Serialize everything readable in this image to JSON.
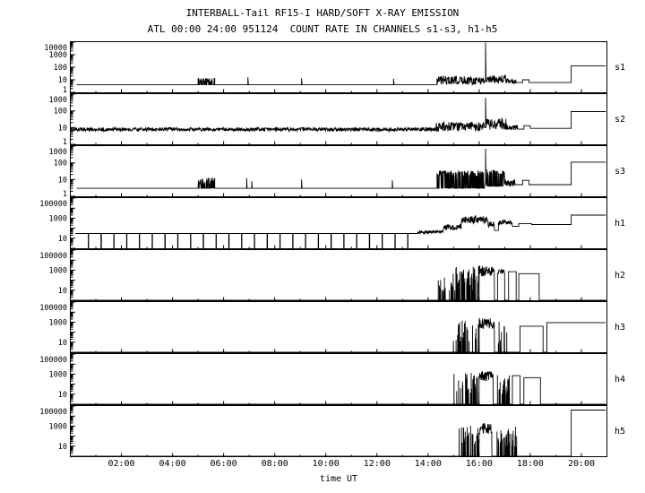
{
  "title": "INTERBALL-Tail RF15-I HARD/SOFT X-RAY EMISSION",
  "subtitle": "ATL 00:00 24:00 951124  COUNT RATE IN CHANNELS s1-s3, h1-h5",
  "xlabel": "time UT",
  "chart_data": {
    "type": "line",
    "title": "INTERBALL-Tail RF15-I HARD/SOFT X-RAY EMISSION",
    "subtitle": "ATL 00:00 24:00 951124  COUNT RATE IN CHANNELS s1-s3, h1-h5",
    "xlabel": "time UT",
    "x_range_hours": [
      0,
      21
    ],
    "grid": false,
    "legend": "none",
    "x_ticks": [
      {
        "hour": 2,
        "label": "02:00"
      },
      {
        "hour": 4,
        "label": "04:00"
      },
      {
        "hour": 6,
        "label": "06:00"
      },
      {
        "hour": 8,
        "label": "08:00"
      },
      {
        "hour": 10,
        "label": "10:00"
      },
      {
        "hour": 12,
        "label": "12:00"
      },
      {
        "hour": 14,
        "label": "14:00"
      },
      {
        "hour": 16,
        "label": "16:00"
      },
      {
        "hour": 18,
        "label": "18:00"
      },
      {
        "hour": 20,
        "label": "20:00"
      }
    ],
    "panels": [
      {
        "label": "s1",
        "decades": 4,
        "yscale": "log",
        "yticks": [
          {
            "value": 10000,
            "label": "10000"
          },
          {
            "value": 1000,
            "label": "1000"
          },
          {
            "value": 100,
            "label": "100"
          },
          {
            "value": 10,
            "label": "10"
          },
          {
            "value": 1,
            "label": "1"
          }
        ],
        "segments": [
          {
            "type": "flat",
            "t0": 0.25,
            "t1": 5.0,
            "level": 4
          },
          {
            "type": "pulses",
            "t0": 5.0,
            "t1": 5.65,
            "lo": 4,
            "hi": 10
          },
          {
            "type": "flat",
            "t0": 5.65,
            "t1": 6.9,
            "level": 4
          },
          {
            "type": "spike",
            "t": 6.95,
            "base": 4,
            "level": 16
          },
          {
            "type": "flat",
            "t0": 7.0,
            "t1": 9.0,
            "level": 4
          },
          {
            "type": "spike",
            "t": 9.05,
            "base": 4,
            "level": 13
          },
          {
            "type": "flat",
            "t0": 9.1,
            "t1": 12.6,
            "level": 4
          },
          {
            "type": "spike",
            "t": 12.65,
            "base": 4,
            "level": 12
          },
          {
            "type": "flat",
            "t0": 12.7,
            "t1": 14.35,
            "level": 4
          },
          {
            "type": "noisy",
            "t0": 14.35,
            "t1": 16.2,
            "lo": 4,
            "hi": 20
          },
          {
            "type": "spike",
            "t": 16.25,
            "base": 8,
            "level": 9000
          },
          {
            "type": "noisy",
            "t0": 16.3,
            "t1": 17.05,
            "lo": 5,
            "hi": 25
          },
          {
            "type": "noisy",
            "t0": 17.05,
            "t1": 17.45,
            "lo": 5,
            "hi": 12
          },
          {
            "type": "flat",
            "t0": 17.45,
            "t1": 17.7,
            "level": 6
          },
          {
            "type": "flat",
            "t0": 17.7,
            "t1": 17.95,
            "level": 10
          },
          {
            "type": "flat",
            "t0": 17.95,
            "t1": 19.6,
            "level": 6
          },
          {
            "type": "flat",
            "t0": 19.6,
            "t1": 20.95,
            "level": 130
          }
        ]
      },
      {
        "label": "s2",
        "decades": 3,
        "yscale": "log",
        "yticks": [
          {
            "value": 1000,
            "label": "1000"
          },
          {
            "value": 100,
            "label": "100"
          },
          {
            "value": 10,
            "label": "10"
          },
          {
            "value": 1,
            "label": "1"
          }
        ],
        "segments": [
          {
            "type": "noisy",
            "t0": 0.05,
            "t1": 14.3,
            "lo": 6,
            "hi": 10
          },
          {
            "type": "noisy",
            "t0": 14.3,
            "t1": 16.2,
            "lo": 6,
            "hi": 22
          },
          {
            "type": "spike",
            "t": 16.25,
            "base": 10,
            "level": 600
          },
          {
            "type": "noisy",
            "t0": 16.3,
            "t1": 17.1,
            "lo": 7,
            "hi": 35
          },
          {
            "type": "noisy",
            "t0": 17.1,
            "t1": 17.5,
            "lo": 7,
            "hi": 14
          },
          {
            "type": "flat",
            "t0": 17.5,
            "t1": 17.75,
            "level": 8
          },
          {
            "type": "flat",
            "t0": 17.75,
            "t1": 18.0,
            "level": 13
          },
          {
            "type": "flat",
            "t0": 18.0,
            "t1": 19.6,
            "level": 9
          },
          {
            "type": "flat",
            "t0": 19.6,
            "t1": 20.95,
            "level": 90
          }
        ]
      },
      {
        "label": "s3",
        "decades": 3,
        "yscale": "log",
        "yticks": [
          {
            "value": 1000,
            "label": "1000"
          },
          {
            "value": 100,
            "label": "100"
          },
          {
            "value": 10,
            "label": "10"
          },
          {
            "value": 1,
            "label": "1"
          }
        ],
        "segments": [
          {
            "type": "flat",
            "t0": 0.25,
            "t1": 5.0,
            "level": 3
          },
          {
            "type": "pulses",
            "t0": 5.0,
            "t1": 5.65,
            "lo": 3,
            "hi": 9
          },
          {
            "type": "flat",
            "t0": 5.65,
            "t1": 6.85,
            "level": 3
          },
          {
            "type": "spike",
            "t": 6.9,
            "base": 3,
            "level": 12
          },
          {
            "type": "spike",
            "t": 7.1,
            "base": 3,
            "level": 8
          },
          {
            "type": "flat",
            "t0": 7.15,
            "t1": 9.0,
            "level": 3
          },
          {
            "type": "spike",
            "t": 9.05,
            "base": 3,
            "level": 10
          },
          {
            "type": "flat",
            "t0": 9.1,
            "t1": 12.55,
            "level": 3
          },
          {
            "type": "spike",
            "t": 12.6,
            "base": 3,
            "level": 9
          },
          {
            "type": "flat",
            "t0": 12.65,
            "t1": 14.35,
            "level": 3
          },
          {
            "type": "pulses",
            "t0": 14.35,
            "t1": 16.2,
            "lo": 3,
            "hi": 25
          },
          {
            "type": "spike",
            "t": 16.25,
            "base": 8,
            "level": 700
          },
          {
            "type": "pulses",
            "t0": 16.3,
            "t1": 17.0,
            "lo": 4,
            "hi": 28
          },
          {
            "type": "noisy",
            "t0": 17.0,
            "t1": 17.4,
            "lo": 4,
            "hi": 10
          },
          {
            "type": "flat",
            "t0": 17.4,
            "t1": 17.7,
            "level": 5
          },
          {
            "type": "flat",
            "t0": 17.7,
            "t1": 17.95,
            "level": 9
          },
          {
            "type": "flat",
            "t0": 17.95,
            "t1": 19.6,
            "level": 5
          },
          {
            "type": "flat",
            "t0": 19.6,
            "t1": 20.95,
            "level": 110
          }
        ]
      },
      {
        "label": "h1",
        "decades": 5,
        "yscale": "log",
        "yticks": [
          {
            "value": 100000,
            "label": "100000"
          },
          {
            "value": 1000,
            "label": "1000"
          },
          {
            "value": 10,
            "label": "10"
          }
        ],
        "segments": [
          {
            "type": "flat_dropouts",
            "t0": 0.2,
            "t1": 13.6,
            "level": 30,
            "period": 0.5
          },
          {
            "type": "noisy",
            "t0": 13.6,
            "t1": 14.6,
            "lo": 28,
            "hi": 60
          },
          {
            "type": "noisy",
            "t0": 14.6,
            "t1": 15.3,
            "lo": 60,
            "hi": 250
          },
          {
            "type": "noisy",
            "t0": 15.3,
            "t1": 16.35,
            "lo": 300,
            "hi": 1600
          },
          {
            "type": "noisy",
            "t0": 16.35,
            "t1": 16.6,
            "lo": 100,
            "hi": 500
          },
          {
            "type": "flat",
            "t0": 16.6,
            "t1": 16.75,
            "level": 60
          },
          {
            "type": "noisy",
            "t0": 16.75,
            "t1": 17.3,
            "lo": 200,
            "hi": 700
          },
          {
            "type": "flat",
            "t0": 17.3,
            "t1": 17.55,
            "level": 150
          },
          {
            "type": "flat",
            "t0": 17.55,
            "t1": 18.05,
            "level": 280
          },
          {
            "type": "flat",
            "t0": 18.05,
            "t1": 19.6,
            "level": 230
          },
          {
            "type": "flat",
            "t0": 19.6,
            "t1": 20.95,
            "level": 2000
          }
        ]
      },
      {
        "label": "h2",
        "decades": 5,
        "yscale": "log",
        "yticks": [
          {
            "value": 100000,
            "label": "100000"
          },
          {
            "value": 1000,
            "label": "1000"
          },
          {
            "value": 10,
            "label": "10"
          }
        ],
        "segments": [
          {
            "type": "flat",
            "t0": 0.2,
            "t1": 14.4,
            "level": 1
          },
          {
            "type": "bursts",
            "t0": 14.4,
            "t1": 15.0,
            "hi": 500,
            "prob": 0.4
          },
          {
            "type": "bursts",
            "t0": 15.0,
            "t1": 16.0,
            "hi": 2500,
            "prob": 0.6
          },
          {
            "type": "noisy",
            "t0": 16.0,
            "t1": 16.6,
            "lo": 250,
            "hi": 3000
          },
          {
            "type": "flat",
            "t0": 16.6,
            "t1": 16.72,
            "level": 1
          },
          {
            "type": "noisy",
            "t0": 16.72,
            "t1": 17.0,
            "lo": 300,
            "hi": 1500
          },
          {
            "type": "flat",
            "t0": 17.0,
            "t1": 17.15,
            "level": 1
          },
          {
            "type": "flat",
            "t0": 17.15,
            "t1": 17.45,
            "level": 700
          },
          {
            "type": "flat",
            "t0": 17.45,
            "t1": 17.55,
            "level": 1
          },
          {
            "type": "flat",
            "t0": 17.55,
            "t1": 18.35,
            "level": 450
          },
          {
            "type": "flat",
            "t0": 18.35,
            "t1": 20.95,
            "level": 1
          }
        ]
      },
      {
        "label": "h3",
        "decades": 5,
        "yscale": "log",
        "yticks": [
          {
            "value": 100000,
            "label": "100000"
          },
          {
            "value": 1000,
            "label": "1000"
          },
          {
            "value": 10,
            "label": "10"
          }
        ],
        "segments": [
          {
            "type": "flat",
            "t0": 0.2,
            "t1": 14.9,
            "level": 1
          },
          {
            "type": "bursts",
            "t0": 14.9,
            "t1": 16.0,
            "hi": 1500,
            "prob": 0.35
          },
          {
            "type": "noisy",
            "t0": 16.0,
            "t1": 16.6,
            "lo": 200,
            "hi": 2500
          },
          {
            "type": "flat",
            "t0": 16.6,
            "t1": 16.75,
            "level": 1
          },
          {
            "type": "bursts",
            "t0": 16.75,
            "t1": 17.1,
            "hi": 1200,
            "prob": 0.5
          },
          {
            "type": "flat",
            "t0": 17.1,
            "t1": 17.6,
            "level": 1
          },
          {
            "type": "flat",
            "t0": 17.6,
            "t1": 18.5,
            "level": 400
          },
          {
            "type": "flat",
            "t0": 18.5,
            "t1": 18.65,
            "level": 1
          },
          {
            "type": "flat",
            "t0": 18.65,
            "t1": 20.95,
            "level": 900
          }
        ]
      },
      {
        "label": "h4",
        "decades": 5,
        "yscale": "log",
        "yticks": [
          {
            "value": 100000,
            "label": "100000"
          },
          {
            "value": 1000,
            "label": "1000"
          },
          {
            "value": 10,
            "label": "10"
          }
        ],
        "segments": [
          {
            "type": "flat",
            "t0": 0.2,
            "t1": 15.0,
            "level": 1
          },
          {
            "type": "bursts",
            "t0": 15.0,
            "t1": 16.0,
            "hi": 1500,
            "prob": 0.4
          },
          {
            "type": "noisy",
            "t0": 16.0,
            "t1": 16.55,
            "lo": 200,
            "hi": 2500
          },
          {
            "type": "flat",
            "t0": 16.55,
            "t1": 16.7,
            "level": 1
          },
          {
            "type": "bursts",
            "t0": 16.7,
            "t1": 17.2,
            "hi": 1500,
            "prob": 0.5
          },
          {
            "type": "flat",
            "t0": 17.2,
            "t1": 17.3,
            "level": 1
          },
          {
            "type": "flat",
            "t0": 17.3,
            "t1": 17.6,
            "level": 700
          },
          {
            "type": "flat",
            "t0": 17.6,
            "t1": 17.75,
            "level": 1
          },
          {
            "type": "flat",
            "t0": 17.75,
            "t1": 18.4,
            "level": 450
          },
          {
            "type": "flat",
            "t0": 18.4,
            "t1": 20.95,
            "level": 1
          }
        ]
      },
      {
        "label": "h5",
        "decades": 5,
        "yscale": "log",
        "yticks": [
          {
            "value": 100000,
            "label": "100000"
          },
          {
            "value": 1000,
            "label": "1000"
          },
          {
            "value": 10,
            "label": "10"
          }
        ],
        "segments": [
          {
            "type": "flat",
            "t0": 0.2,
            "t1": 15.2,
            "level": 1
          },
          {
            "type": "bursts",
            "t0": 15.2,
            "t1": 16.0,
            "hi": 1200,
            "prob": 0.35
          },
          {
            "type": "noisy",
            "t0": 16.0,
            "t1": 16.5,
            "lo": 150,
            "hi": 2000
          },
          {
            "type": "flat",
            "t0": 16.5,
            "t1": 16.7,
            "level": 1
          },
          {
            "type": "bursts",
            "t0": 16.7,
            "t1": 17.5,
            "hi": 1500,
            "prob": 0.45
          },
          {
            "type": "flat",
            "t0": 17.5,
            "t1": 19.6,
            "level": 1
          },
          {
            "type": "flat",
            "t0": 19.6,
            "t1": 20.95,
            "level": 40000
          }
        ]
      }
    ]
  }
}
